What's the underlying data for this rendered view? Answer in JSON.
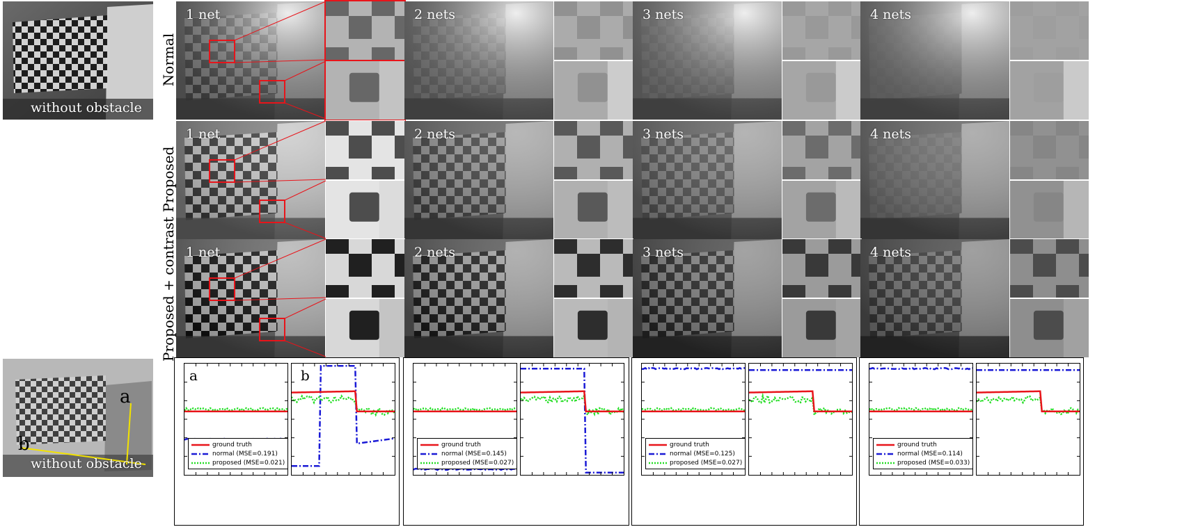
{
  "figure": {
    "reference_top_caption": "without obstacle",
    "reference_bottom_caption": "without obstacle",
    "axis_markers": [
      "a",
      "b"
    ],
    "row_labels": [
      "Normal",
      "Proposed",
      "Proposed + contrast"
    ],
    "column_labels": [
      "1 net",
      "2 nets",
      "3 nets",
      "4 nets"
    ],
    "plot_letters": [
      "a",
      "b"
    ],
    "colors": {
      "ground_truth": "#e8141a",
      "normal": "#1a1ad6",
      "proposed": "#22dd22",
      "zoom_box": "#e8141a",
      "axis_line": "#f2e200"
    }
  },
  "legends": [
    {
      "ground_truth": "ground truth",
      "normal": "normal (MSE=0.191)",
      "proposed": "proposed (MSE=0.021)"
    },
    {
      "ground_truth": "ground truth",
      "normal": "normal (MSE=0.145)",
      "proposed": "proposed (MSE=0.027)"
    },
    {
      "ground_truth": "ground truth",
      "normal": "normal (MSE=0.125)",
      "proposed": "proposed (MSE=0.027)"
    },
    {
      "ground_truth": "ground truth",
      "normal": "normal (MSE=0.114)",
      "proposed": "proposed (MSE=0.033)"
    }
  ]
}
